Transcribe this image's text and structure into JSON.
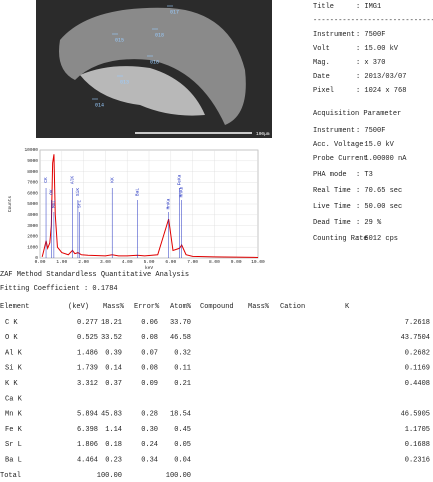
{
  "sem_image": {
    "scale_bar": "100µm",
    "labels": [
      "017",
      "015",
      "018",
      "016",
      "013",
      "014"
    ]
  },
  "spectrum": {
    "type": "line",
    "x_label": "keV",
    "y_label": "Counts",
    "xlim": [
      0,
      10
    ],
    "ylim": [
      0,
      10000
    ],
    "xticks": [
      {
        "value": 0,
        "label": "0.00"
      },
      {
        "value": 1,
        "label": "1.00"
      },
      {
        "value": 2,
        "label": "2.00"
      },
      {
        "value": 3,
        "label": "3.00"
      },
      {
        "value": 4,
        "label": "4.00"
      },
      {
        "value": 5,
        "label": "5.00"
      },
      {
        "value": 6,
        "label": "6.00"
      },
      {
        "value": 7,
        "label": "7.00"
      },
      {
        "value": 8,
        "label": "8.00"
      },
      {
        "value": 9,
        "label": "9.00"
      },
      {
        "value": 10,
        "label": "10.00"
      }
    ],
    "yticks": [
      0,
      1000,
      2000,
      3000,
      4000,
      5000,
      6000,
      7000,
      8000,
      9000,
      10000
    ],
    "color": "#e00000",
    "grid": true,
    "x": [
      0.1,
      0.2,
      0.28,
      0.35,
      0.45,
      0.52,
      0.58,
      0.64,
      0.7,
      0.8,
      1.0,
      1.3,
      1.49,
      1.6,
      1.74,
      1.9,
      2.2,
      3.0,
      3.31,
      3.6,
      4.0,
      4.46,
      4.8,
      5.4,
      5.9,
      6.1,
      6.4,
      6.5,
      6.7,
      7.0,
      8.0,
      10.0
    ],
    "values": [
      100,
      900,
      1600,
      900,
      1400,
      3000,
      8800,
      9600,
      4000,
      1000,
      500,
      300,
      700,
      400,
      500,
      300,
      250,
      200,
      300,
      200,
      200,
      250,
      200,
      300,
      3600,
      700,
      900,
      1200,
      300,
      150,
      100,
      50
    ],
    "peak_labels": [
      {
        "label": "CK",
        "energy": 0.277
      },
      {
        "label": "OK",
        "energy": 0.525
      },
      {
        "label": "MnL",
        "energy": 0.637
      },
      {
        "label": "AlK",
        "energy": 1.486
      },
      {
        "label": "SiK",
        "energy": 1.739
      },
      {
        "label": "SrL",
        "energy": 1.806
      },
      {
        "label": "KK",
        "energy": 3.312
      },
      {
        "label": "BaL",
        "energy": 4.464
      },
      {
        "label": "MnKa",
        "energy": 5.894
      },
      {
        "label": "FeKa",
        "energy": 6.398
      },
      {
        "label": "MnKb",
        "energy": 6.49
      }
    ]
  },
  "info": {
    "rows": [
      {
        "label": "Title",
        "value": ": IMG1"
      },
      {
        "label": "-----------------------------"
      },
      {
        "label": "Instrument",
        "value": ": 7500F"
      },
      {
        "label": "Volt",
        "value": ": 15.00 kV"
      },
      {
        "label": "Mag.",
        "value": ": x 370"
      },
      {
        "label": "Date",
        "value": ": 2013/03/07"
      },
      {
        "label": "Pixel",
        "value": ": 1024 x 768"
      },
      {
        "label": "Acquisition Parameter"
      },
      {
        "label": "Instrument",
        "value": ": 7500F"
      },
      {
        "label": "Acc. Voltage",
        "value": ": 15.0 kV"
      },
      {
        "label": "Probe Current",
        "value": ": 1.00000 nA"
      },
      {
        "label": "PHA mode",
        "value": ": T3"
      },
      {
        "label": "Real Time",
        "value": ": 70.65 sec"
      },
      {
        "label": "Live Time",
        "value": ": 50.00 sec"
      },
      {
        "label": "Dead Time",
        "value": ": 29 %"
      },
      {
        "label": "Counting Rate",
        "value": ": 6012 cps"
      }
    ]
  },
  "analysis": {
    "title": "ZAF Method Standardless Quantitative Analysis",
    "fitting": "Fitting Coefficient : 0.1784",
    "headers": [
      "Element",
      "(keV)",
      "Mass%",
      "Error%",
      "Atom%",
      "Compound",
      "Mass%",
      "Cation",
      "K"
    ],
    "rows": [
      {
        "element": "C K",
        "kev": "0.277",
        "mass": "18.21",
        "error": "0.06",
        "atom": "33.70",
        "k": "7.2618"
      },
      {
        "element": "O K",
        "kev": "0.525",
        "mass": "33.52",
        "error": "0.08",
        "atom": "46.58",
        "k": "43.7504"
      },
      {
        "element": "Al K",
        "kev": "1.486",
        "mass": "0.39",
        "error": "0.07",
        "atom": "0.32",
        "k": "0.2682"
      },
      {
        "element": "Si K",
        "kev": "1.739",
        "mass": "0.14",
        "error": "0.08",
        "atom": "0.11",
        "k": "0.1169"
      },
      {
        "element": "K K",
        "kev": "3.312",
        "mass": "0.37",
        "error": "0.09",
        "atom": "0.21",
        "k": "0.4408"
      },
      {
        "element": "Ca K"
      },
      {
        "element": "Mn K",
        "kev": "5.894",
        "mass": "45.83",
        "error": "0.28",
        "atom": "18.54",
        "k": "46.5905"
      },
      {
        "element": "Fe K",
        "kev": "6.398",
        "mass": "1.14",
        "error": "0.30",
        "atom": "0.45",
        "k": "1.1705"
      },
      {
        "element": "Sr L",
        "kev": "1.806",
        "mass": "0.18",
        "error": "0.24",
        "atom": "0.05",
        "k": "0.1688"
      },
      {
        "element": "Ba L",
        "kev": "4.464",
        "mass": "0.23",
        "error": "0.34",
        "atom": "0.04",
        "k": "0.2316"
      },
      {
        "element": "Total",
        "mass": "100.00",
        "atom": "100.00"
      }
    ]
  }
}
